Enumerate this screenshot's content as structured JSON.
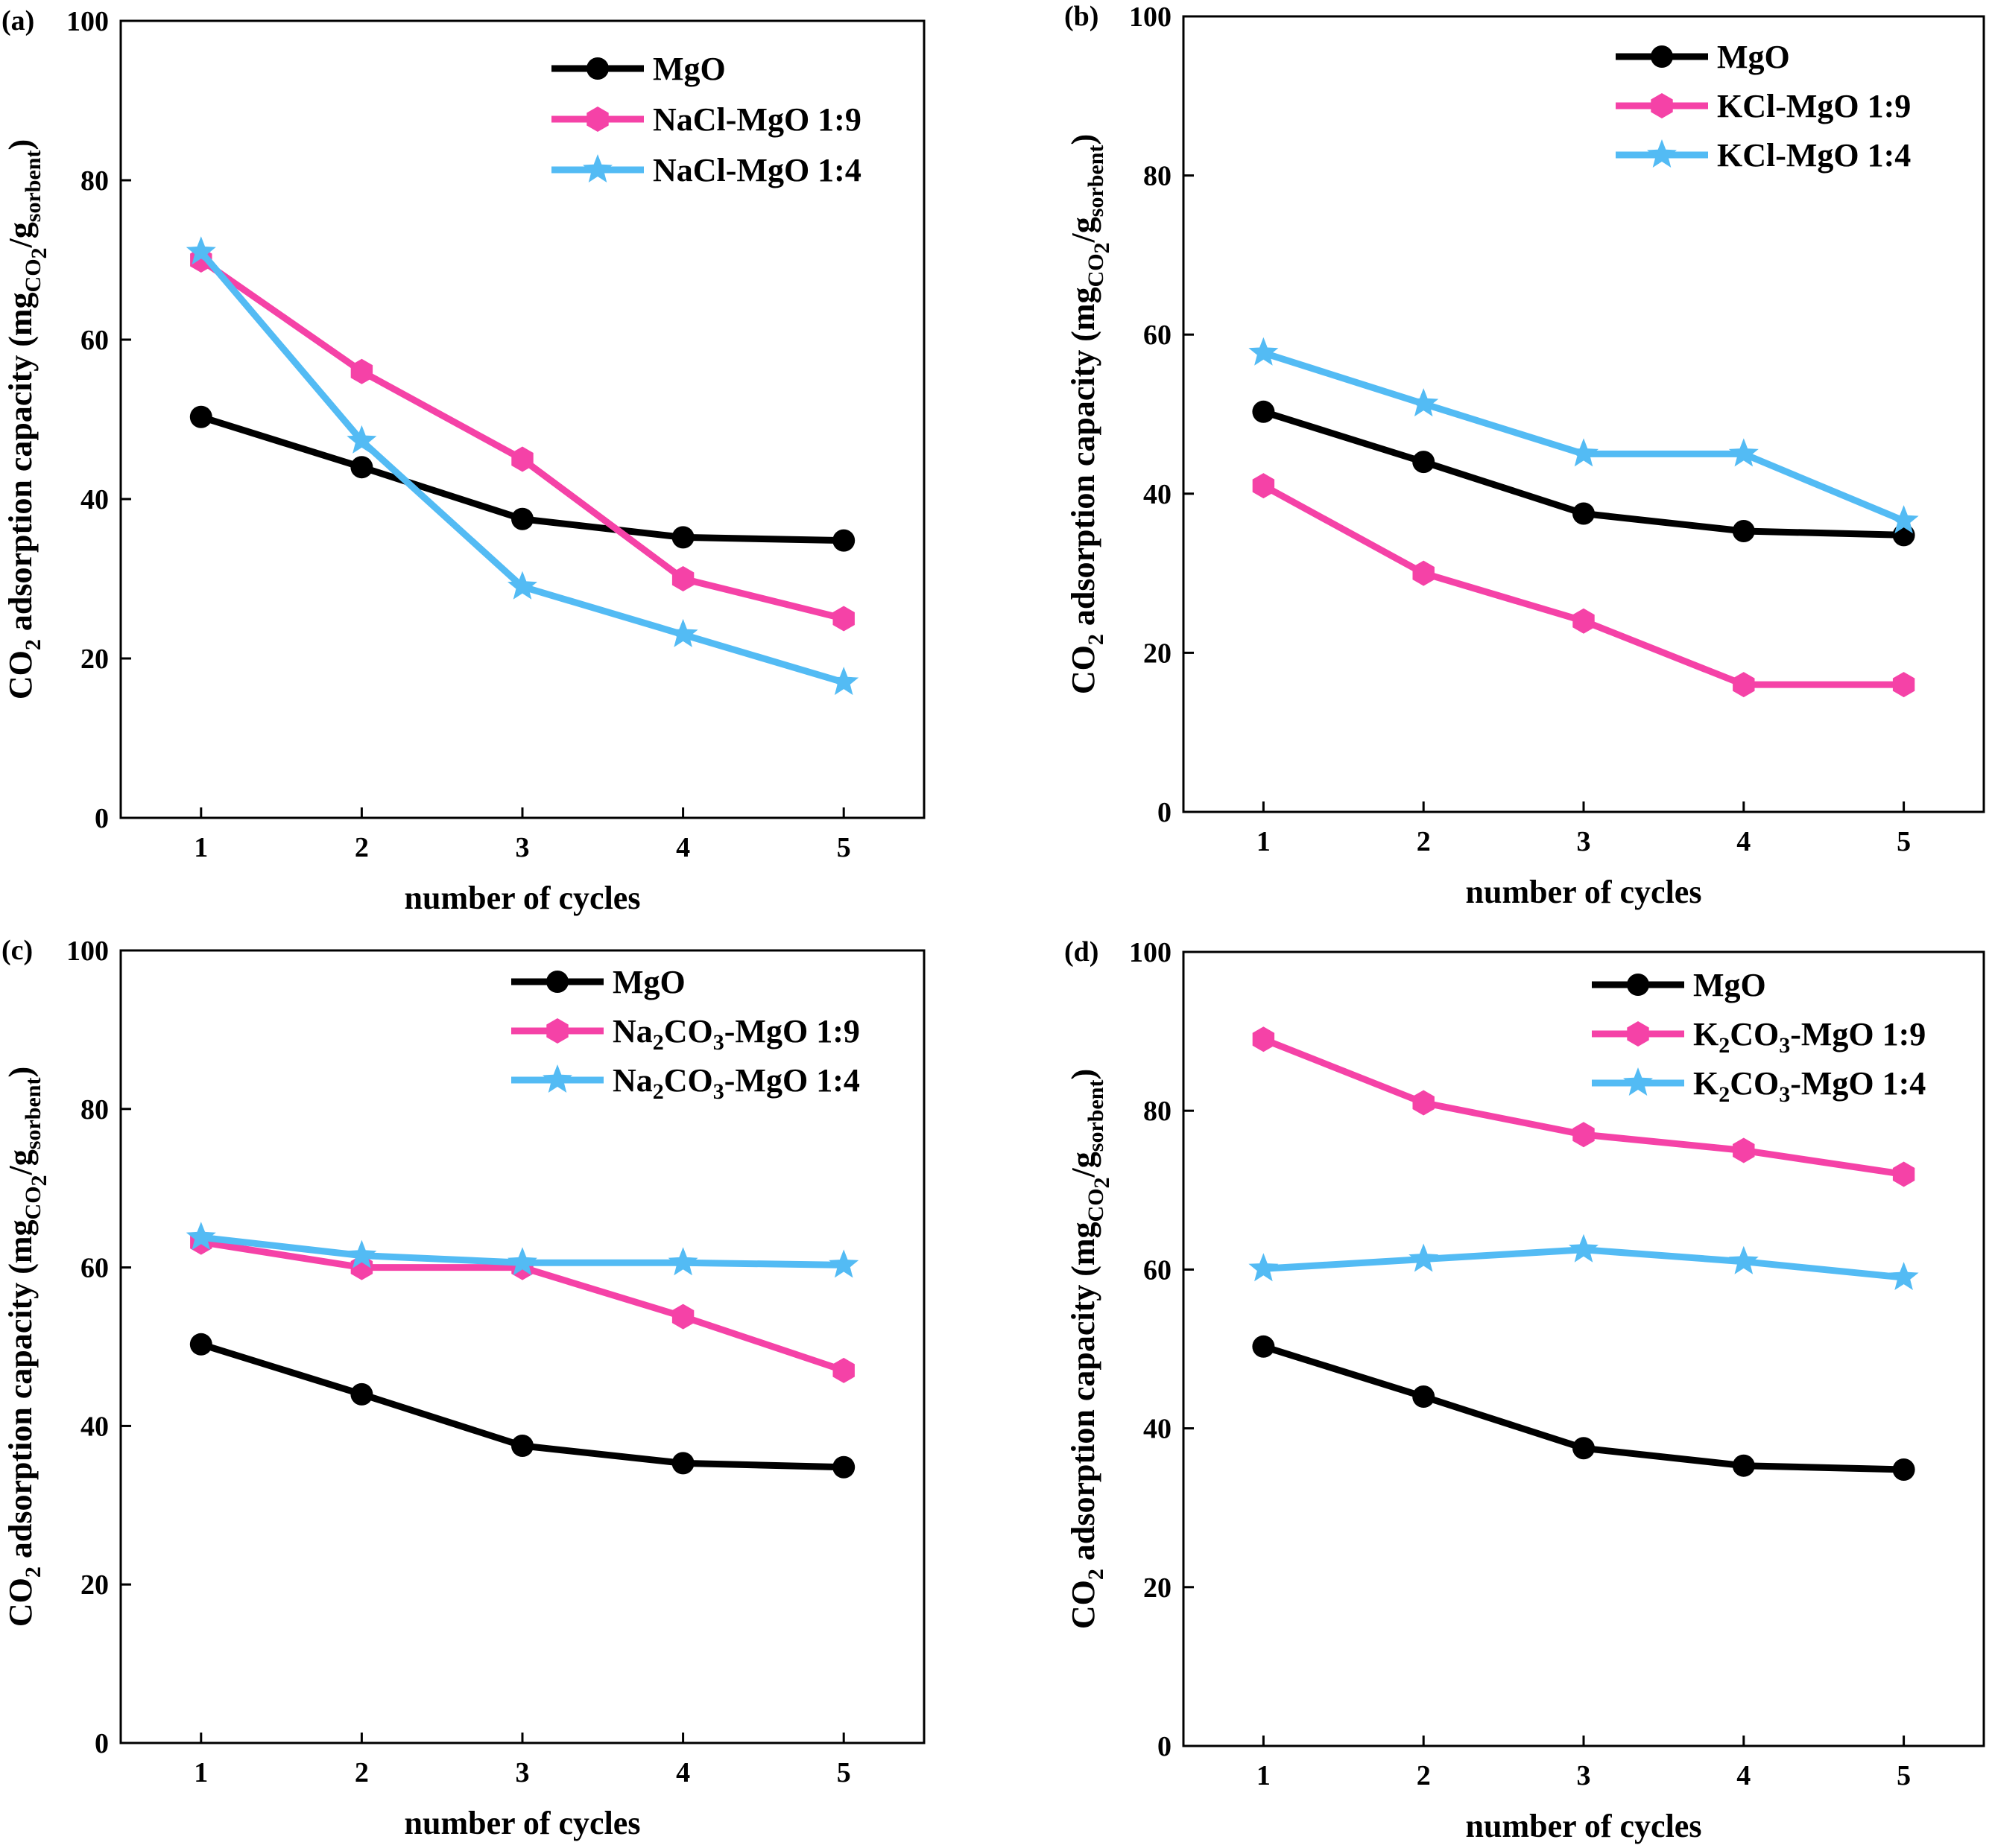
{
  "chart_data": [
    {
      "panel_label": "(a)",
      "type": "line",
      "xlabel": "number of cycles",
      "ylabel": {
        "lead": "CO",
        "lead_sub": "2",
        "text": " adsorption capacity (mg",
        "unit_sub": "CO",
        "unit_sub_sub": "2",
        "slash": "/g",
        "denom_sub": "sorbent",
        "close": ")"
      },
      "x": [
        1,
        2,
        3,
        4,
        5
      ],
      "xlim": [
        0.5,
        5.5
      ],
      "ylim": [
        0,
        100
      ],
      "yticks": [
        0,
        20,
        40,
        60,
        80,
        100
      ],
      "legend_position": "top-right",
      "series": [
        {
          "name": "MgO",
          "marker": "circle",
          "color": "#000000",
          "values": [
            50.3,
            44.0,
            37.5,
            35.2,
            34.8
          ]
        },
        {
          "name": "NaCl-MgO 1:9",
          "marker": "hexagon",
          "color": "#f542a7",
          "values": [
            70.0,
            56.0,
            45.0,
            30.0,
            25.0
          ]
        },
        {
          "name": "NaCl-MgO 1:4",
          "marker": "star",
          "color": "#53bbf4",
          "values": [
            71.0,
            47.3,
            29.0,
            23.0,
            17.0
          ]
        }
      ]
    },
    {
      "panel_label": "(b)",
      "type": "line",
      "xlabel": "number of cycles",
      "ylabel": {
        "lead": "CO",
        "lead_sub": "2",
        "text": " adsorption capacity (mg",
        "unit_sub": "CO",
        "unit_sub_sub": "2",
        "slash": "/g",
        "denom_sub": "sorbent",
        "close": ")"
      },
      "x": [
        1,
        2,
        3,
        4,
        5
      ],
      "xlim": [
        0.5,
        5.5
      ],
      "ylim": [
        0,
        100
      ],
      "yticks": [
        0,
        20,
        40,
        60,
        80,
        100
      ],
      "legend_position": "top-right",
      "series": [
        {
          "name": "MgO",
          "marker": "circle",
          "color": "#000000",
          "values": [
            50.3,
            44.0,
            37.5,
            35.3,
            34.8
          ]
        },
        {
          "name": "KCl-MgO 1:9",
          "marker": "hexagon",
          "color": "#f542a7",
          "values": [
            41.0,
            30.0,
            24.0,
            16.0,
            16.0
          ]
        },
        {
          "name": "KCl-MgO 1:4",
          "marker": "star",
          "color": "#53bbf4",
          "values": [
            57.7,
            51.3,
            45.0,
            45.0,
            36.6
          ]
        }
      ]
    },
    {
      "panel_label": "(c)",
      "type": "line",
      "xlabel": "number of cycles",
      "ylabel": {
        "lead": "CO",
        "lead_sub": "2",
        "text": " adsorption capacity (mg",
        "unit_sub": "CO",
        "unit_sub_sub": "2",
        "slash": "/g",
        "denom_sub": "sorbent",
        "close": ")"
      },
      "x": [
        1,
        2,
        3,
        4,
        5
      ],
      "xlim": [
        0.5,
        5.5
      ],
      "ylim": [
        0,
        100
      ],
      "yticks": [
        0,
        20,
        40,
        60,
        80,
        100
      ],
      "legend_position": "top-right",
      "series": [
        {
          "name": "MgO",
          "marker": "circle",
          "color": "#000000",
          "values": [
            50.3,
            44.0,
            37.5,
            35.3,
            34.8
          ]
        },
        {
          "name": "Na2CO3-MgO 1:9",
          "name_parts": [
            "Na",
            "2",
            "CO",
            "3",
            "-MgO 1:9"
          ],
          "marker": "hexagon",
          "color": "#f542a7",
          "values": [
            63.2,
            60.0,
            60.0,
            53.8,
            47.0
          ]
        },
        {
          "name": "Na2CO3-MgO 1:4",
          "name_parts": [
            "Na",
            "2",
            "CO",
            "3",
            "-MgO 1:4"
          ],
          "marker": "star",
          "color": "#53bbf4",
          "values": [
            63.8,
            61.5,
            60.6,
            60.6,
            60.3
          ]
        }
      ]
    },
    {
      "panel_label": "(d)",
      "type": "line",
      "xlabel": "number of cycles",
      "ylabel": {
        "lead": "CO",
        "lead_sub": "2",
        "text": " adsorption capacity (mg",
        "unit_sub": "CO",
        "unit_sub_sub": "2",
        "slash": "/g",
        "denom_sub": "sorbent",
        "close": ")"
      },
      "x": [
        1,
        2,
        3,
        4,
        5
      ],
      "xlim": [
        0.5,
        5.5
      ],
      "ylim": [
        0,
        100
      ],
      "yticks": [
        0,
        20,
        40,
        60,
        80,
        100
      ],
      "legend_position": "top-right",
      "series": [
        {
          "name": "MgO",
          "marker": "circle",
          "color": "#000000",
          "values": [
            50.3,
            44.0,
            37.5,
            35.3,
            34.8
          ]
        },
        {
          "name": "K2CO3-MgO 1:9",
          "name_parts": [
            "K",
            "2",
            "CO",
            "3",
            "-MgO 1:9"
          ],
          "marker": "hexagon",
          "color": "#f542a7",
          "values": [
            89.0,
            81.0,
            77.0,
            75.0,
            72.0
          ]
        },
        {
          "name": "K2CO3-MgO 1:4",
          "name_parts": [
            "K",
            "2",
            "CO",
            "3",
            "-MgO 1:4"
          ],
          "marker": "star",
          "color": "#53bbf4",
          "values": [
            60.1,
            61.3,
            62.5,
            61.0,
            59.0
          ]
        }
      ]
    }
  ]
}
